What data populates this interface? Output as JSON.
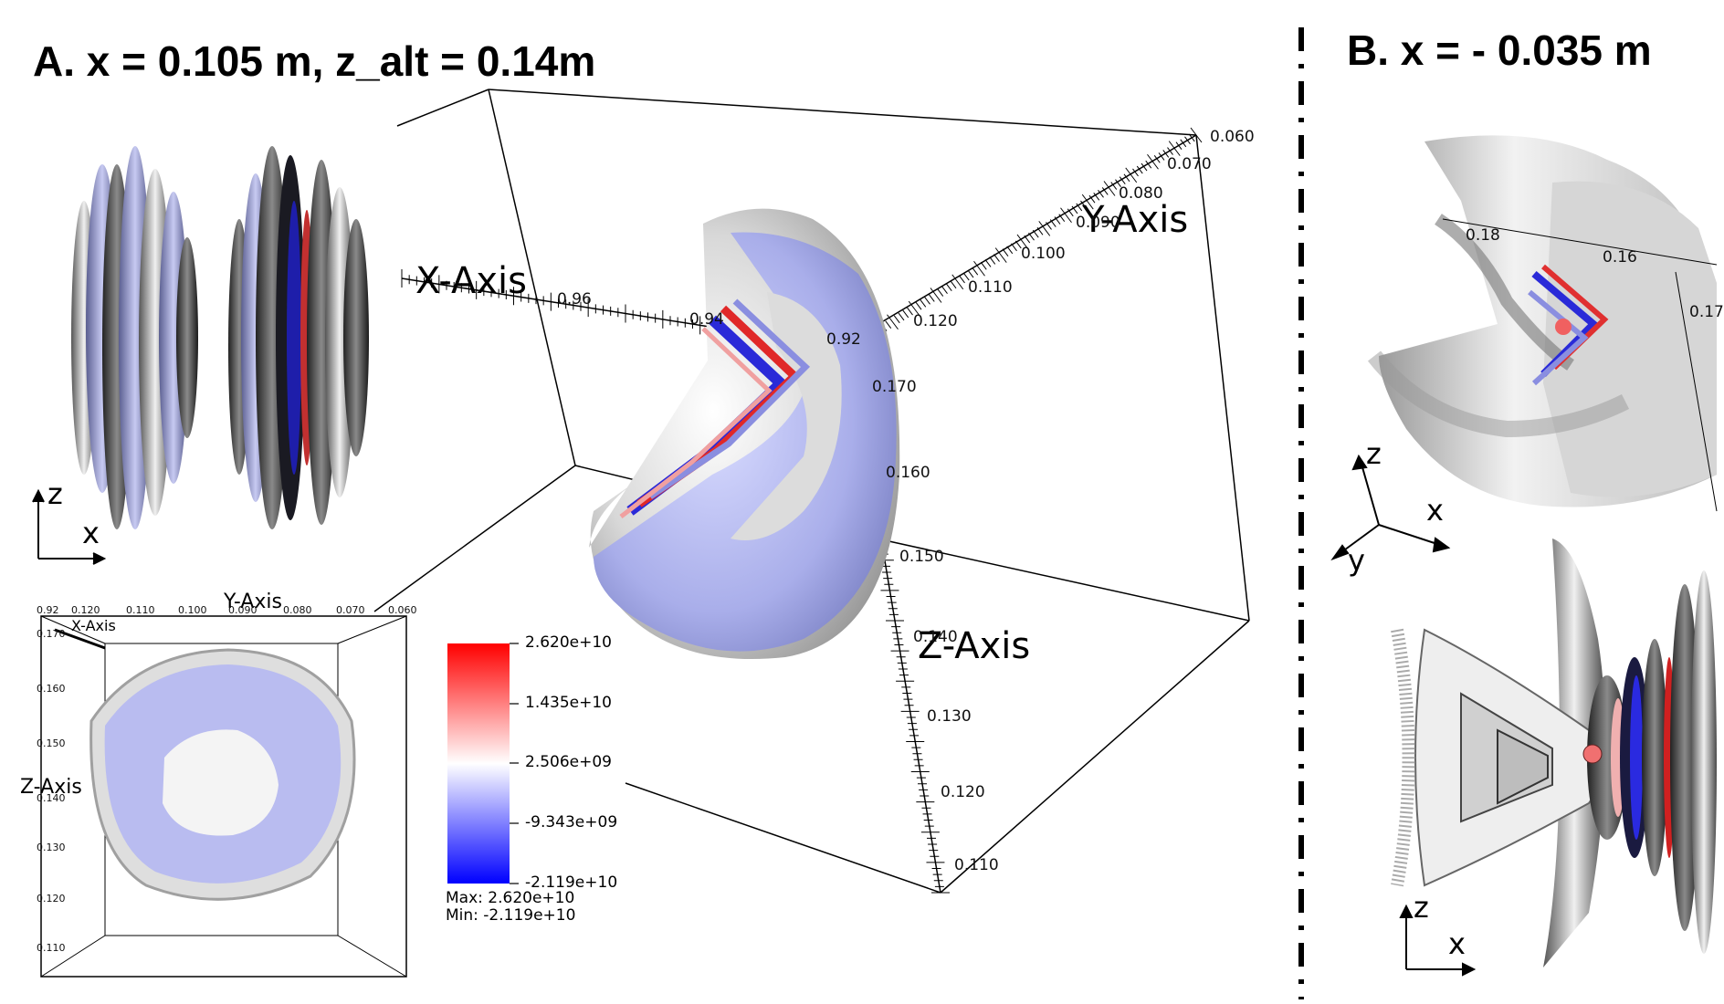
{
  "panel_a": {
    "title": "A. x = 0.105 m, z_alt = 0.14m",
    "main_axes": {
      "x_axis_label": "X-Axis",
      "y_axis_label": "Y-Axis",
      "z_axis_label": "Z-Axis",
      "x_ticks": [
        "0.96",
        "0.94",
        "0.92"
      ],
      "y_ticks": [
        "0.060",
        "0.070",
        "0.080",
        "0.090",
        "0.100",
        "0.110",
        "0.120"
      ],
      "z_ticks": [
        "0.170",
        "0.160",
        "0.150",
        "0.140",
        "0.130",
        "0.120",
        "0.110"
      ]
    },
    "inset_axes": {
      "y_axis_label": "Y-Axis",
      "x_axis_label": "X-Axis",
      "z_axis_label": "Z-Axis",
      "top_ticks": [
        "0.92",
        "0.120",
        "0.110",
        "0.100",
        "0.090",
        "0.080",
        "0.070",
        "0.060"
      ],
      "left_ticks": [
        "0.170",
        "0.160",
        "0.150",
        "0.140",
        "0.130",
        "0.120",
        "0.110"
      ]
    },
    "side_view_axes": {
      "vertical": "z",
      "horizontal": "x"
    },
    "colorbar": {
      "ticks": [
        "2.620e+10",
        "1.435e+10",
        "2.506e+09",
        "-9.343e+09",
        "-2.119e+10"
      ],
      "max_label": "Max:  2.620e+10",
      "min_label": "Min: -2.119e+10",
      "colors": {
        "top": "#ff0000",
        "middle": "#ffffff",
        "bottom": "#0000ff"
      }
    }
  },
  "panel_b": {
    "title": "B. x = - 0.035 m",
    "top_axes_ticks": [
      "0.18",
      "0.16",
      "0.17"
    ],
    "triad": {
      "z": "z",
      "x": "x",
      "y": "y"
    },
    "bottom_axes": {
      "vertical": "z",
      "horizontal": "x"
    }
  }
}
